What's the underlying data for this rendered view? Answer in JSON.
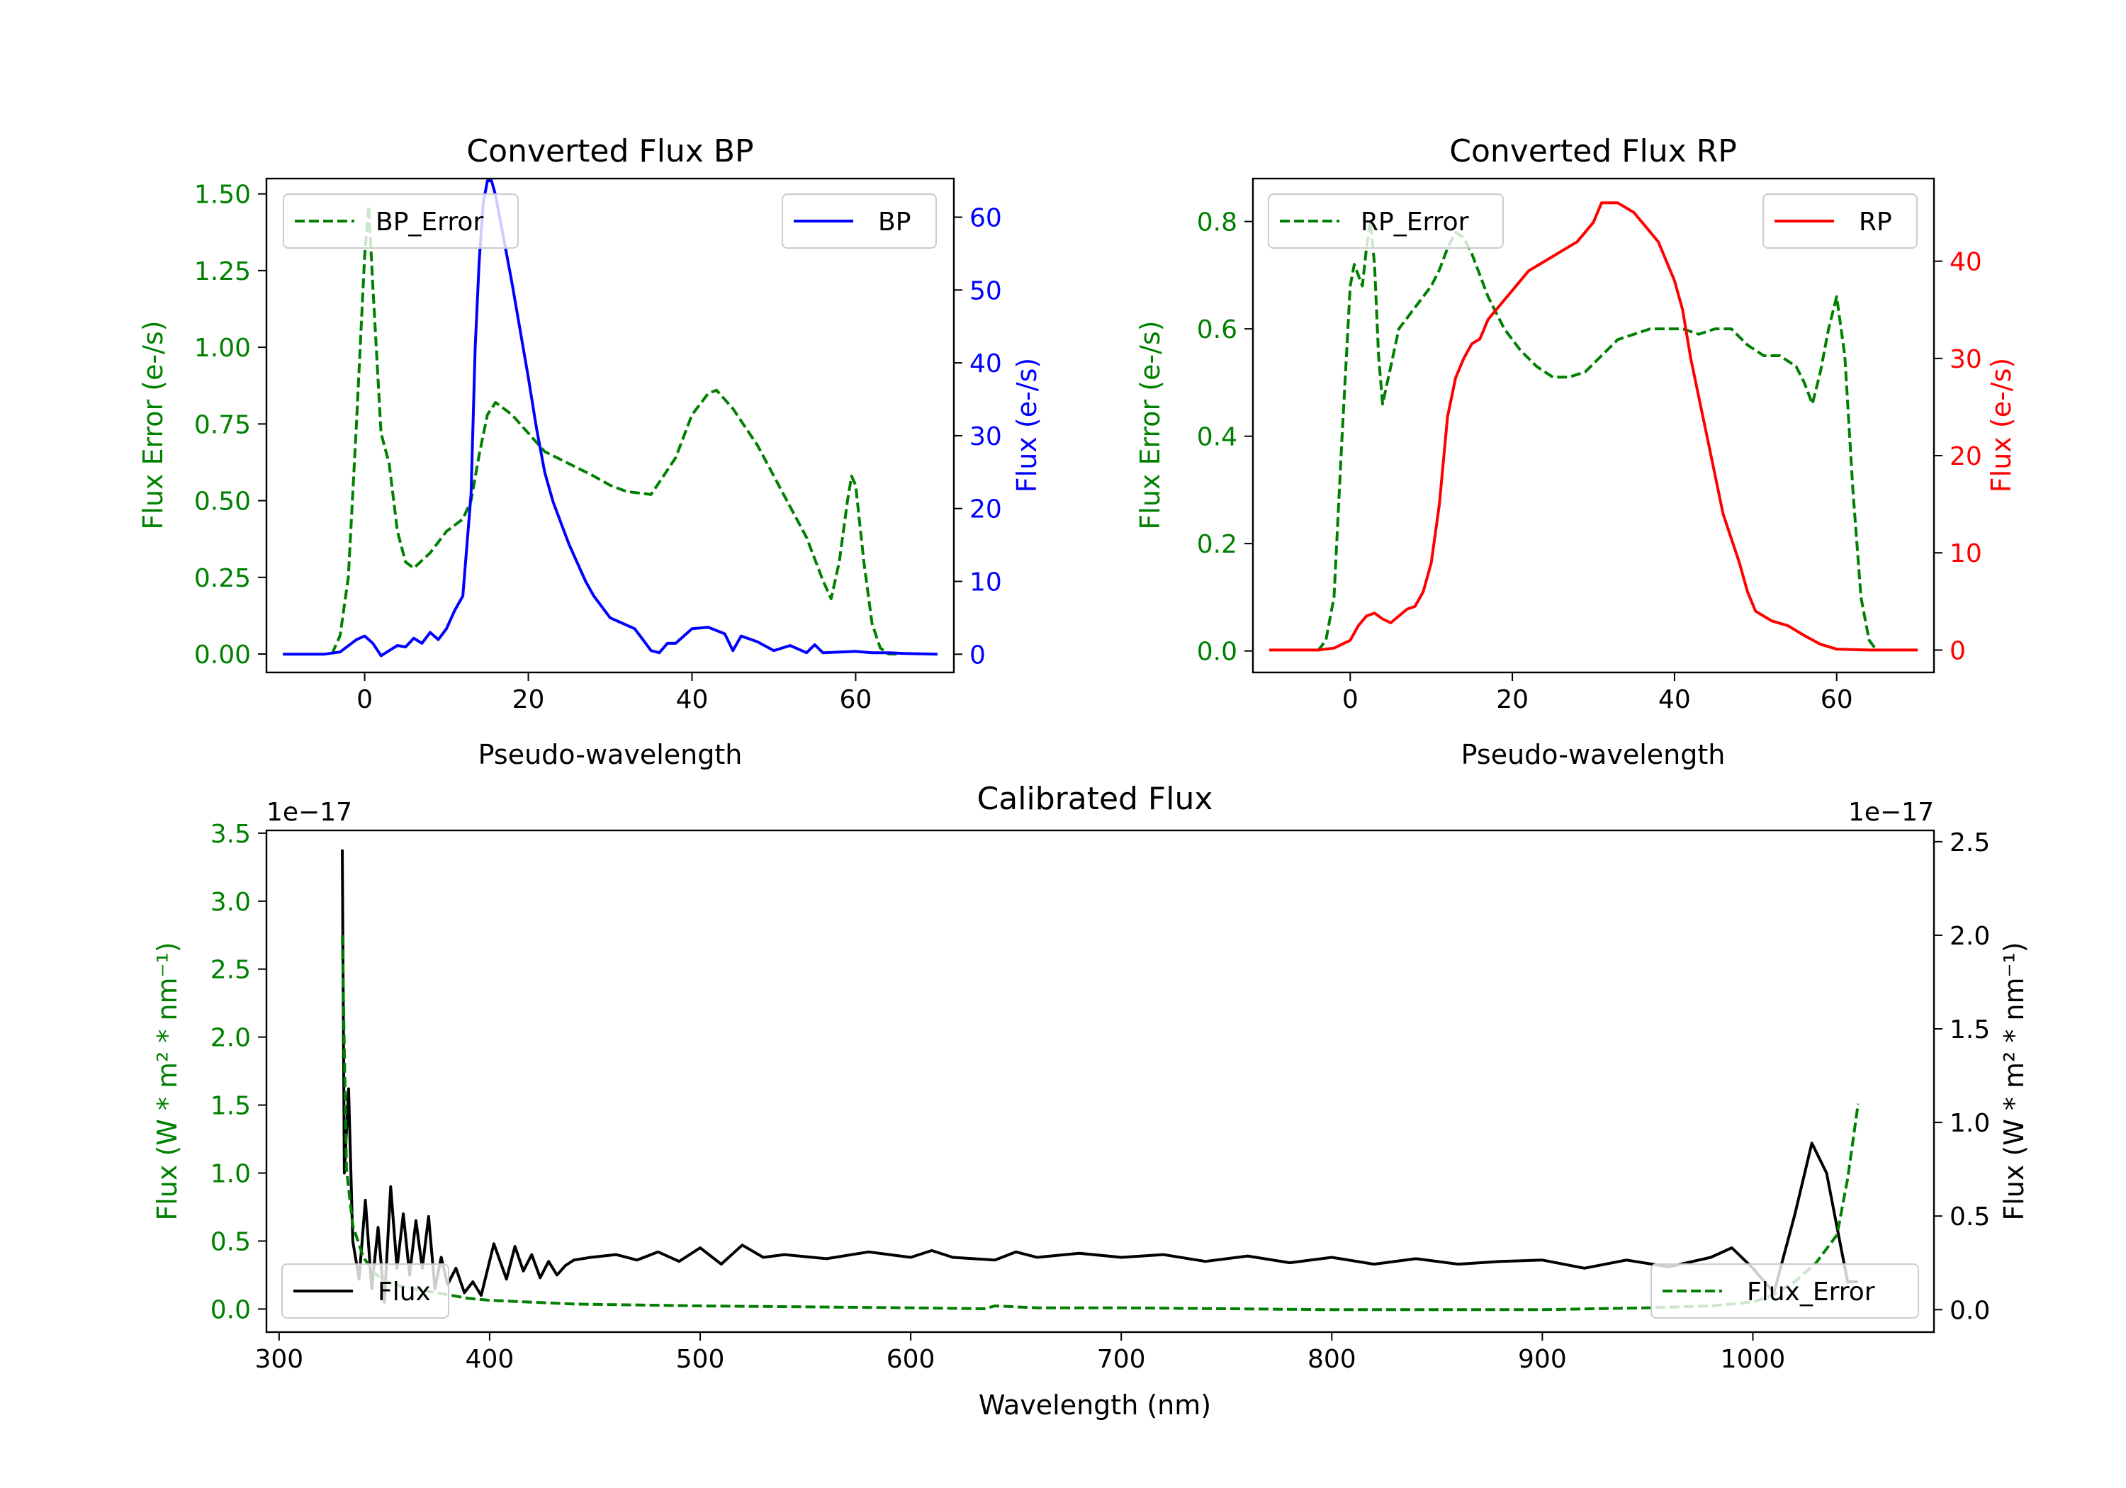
{
  "chart_data": [
    {
      "type": "line",
      "title": "Converted Flux BP",
      "xlabel": "Pseudo-wavelength",
      "xlim": [
        -12,
        72
      ],
      "xticks": [
        "0",
        "20",
        "40",
        "60"
      ],
      "left_axis": {
        "label": "Flux Error (e-/s)",
        "color": "#008000",
        "ylim": [
          -0.06,
          1.55
        ],
        "ticks": [
          "0.00",
          "0.25",
          "0.50",
          "0.75",
          "1.00",
          "1.25",
          "1.50"
        ]
      },
      "right_axis": {
        "label": "Flux (e-/s)",
        "color": "#0000ff",
        "ylim": [
          -2.5,
          65.3
        ],
        "ticks": [
          "0",
          "10",
          "20",
          "30",
          "40",
          "50",
          "60"
        ]
      },
      "series": [
        {
          "name": "BP_Error",
          "axis": "left",
          "style": "dashed",
          "color": "#008000",
          "x": [
            -4,
            -3,
            -2,
            -1,
            0,
            0.5,
            1,
            2,
            3,
            4,
            5,
            6,
            8,
            10,
            12,
            13,
            14,
            15,
            16,
            18,
            20,
            22,
            25,
            28,
            30,
            32,
            35,
            38,
            40,
            42,
            43,
            45,
            48,
            50,
            52,
            54,
            56,
            57,
            58,
            59,
            59.5,
            60,
            61,
            62,
            63,
            64,
            65
          ],
          "y": [
            0.0,
            0.06,
            0.25,
            0.75,
            1.3,
            1.46,
            1.2,
            0.72,
            0.62,
            0.4,
            0.3,
            0.28,
            0.33,
            0.4,
            0.44,
            0.5,
            0.65,
            0.78,
            0.82,
            0.78,
            0.72,
            0.66,
            0.62,
            0.58,
            0.55,
            0.53,
            0.52,
            0.64,
            0.78,
            0.85,
            0.86,
            0.8,
            0.68,
            0.58,
            0.48,
            0.38,
            0.24,
            0.18,
            0.3,
            0.5,
            0.58,
            0.55,
            0.3,
            0.1,
            0.02,
            0.0,
            0.0
          ]
        },
        {
          "name": "BP",
          "axis": "right",
          "style": "solid",
          "color": "#0000ff",
          "x": [
            -10,
            -5,
            -3,
            -1,
            0,
            1,
            2,
            3,
            4,
            5,
            6,
            7,
            8,
            9,
            10,
            11,
            12,
            13,
            13.5,
            14,
            14.5,
            15,
            15.5,
            16,
            17,
            18,
            20,
            21,
            22,
            23,
            24,
            25,
            27,
            28,
            30,
            32,
            33,
            34,
            35,
            36,
            37,
            38,
            40,
            42,
            44,
            45,
            46,
            48,
            50,
            52,
            54,
            55,
            56,
            58,
            60,
            62,
            64,
            66,
            70
          ],
          "y": [
            0,
            0,
            0.3,
            2,
            2.5,
            1.5,
            -0.2,
            0.5,
            1.2,
            1,
            2.2,
            1.5,
            3,
            2,
            3.5,
            6,
            8,
            22,
            42,
            54,
            62,
            65,
            65,
            63,
            57,
            51,
            38,
            31,
            25,
            21,
            18,
            15,
            10,
            8,
            5,
            4,
            3.5,
            2,
            0.5,
            0.2,
            1.5,
            1.5,
            3.5,
            3.7,
            2.8,
            0.5,
            2.5,
            1.7,
            0.5,
            1.2,
            0.2,
            1.3,
            0.2,
            0.3,
            0.4,
            0.2,
            0.2,
            0.1,
            0
          ]
        }
      ],
      "legend": [
        {
          "label": "BP_Error",
          "position": "upper-left"
        },
        {
          "label": "BP",
          "position": "upper-right"
        }
      ]
    },
    {
      "type": "line",
      "title": "Converted Flux RP",
      "xlabel": "Pseudo-wavelength",
      "xlim": [
        -12,
        72
      ],
      "xticks": [
        "0",
        "20",
        "40",
        "60"
      ],
      "left_axis": {
        "label": "Flux Error (e-/s)",
        "color": "#008000",
        "ylim": [
          -0.04,
          0.88
        ],
        "ticks": [
          "0.0",
          "0.2",
          "0.4",
          "0.6",
          "0.8"
        ]
      },
      "right_axis": {
        "label": "Flux (e-/s)",
        "color": "#ff0000",
        "ylim": [
          -2.3,
          48.5
        ],
        "ticks": [
          "0",
          "10",
          "20",
          "30",
          "40"
        ]
      },
      "series": [
        {
          "name": "RP_Error",
          "axis": "left",
          "style": "dashed",
          "color": "#008000",
          "x": [
            -4,
            -3,
            -2,
            -1,
            0,
            0.5,
            1,
            1.5,
            2,
            2.5,
            3,
            3.5,
            4,
            5,
            6,
            7,
            8,
            9,
            10,
            11,
            12,
            13,
            14,
            15,
            17,
            19,
            21,
            23,
            25,
            27,
            29,
            31,
            33,
            35,
            37,
            39,
            41,
            43,
            45,
            47,
            49,
            51,
            53,
            55,
            56,
            57,
            58,
            59,
            60,
            61,
            62,
            63,
            64,
            65
          ],
          "y": [
            0.0,
            0.02,
            0.1,
            0.4,
            0.68,
            0.72,
            0.7,
            0.68,
            0.75,
            0.8,
            0.72,
            0.55,
            0.46,
            0.53,
            0.6,
            0.62,
            0.64,
            0.66,
            0.68,
            0.71,
            0.75,
            0.78,
            0.77,
            0.74,
            0.66,
            0.6,
            0.56,
            0.53,
            0.51,
            0.51,
            0.52,
            0.55,
            0.58,
            0.59,
            0.6,
            0.6,
            0.6,
            0.59,
            0.6,
            0.6,
            0.57,
            0.55,
            0.55,
            0.53,
            0.5,
            0.46,
            0.52,
            0.6,
            0.66,
            0.55,
            0.3,
            0.1,
            0.02,
            0.0
          ]
        },
        {
          "name": "RP",
          "axis": "right",
          "style": "solid",
          "color": "#ff0000",
          "x": [
            -10,
            -4,
            -2,
            0,
            1,
            2,
            3,
            4,
            5,
            6,
            7,
            8,
            9,
            10,
            11,
            12,
            13,
            14,
            15,
            16,
            17,
            18,
            20,
            22,
            24,
            26,
            28,
            30,
            31,
            33,
            35,
            36,
            38,
            40,
            41,
            42,
            44,
            46,
            48,
            49,
            50,
            52,
            54,
            56,
            58,
            60,
            64,
            70
          ],
          "y": [
            0,
            0,
            0.2,
            1,
            2.5,
            3.5,
            3.8,
            3.2,
            2.8,
            3.5,
            4.2,
            4.5,
            6,
            9,
            15,
            24,
            28,
            30,
            31.5,
            32,
            34,
            35,
            37,
            39,
            40,
            41,
            42,
            44,
            46,
            46,
            45,
            44,
            42,
            38,
            35,
            30,
            22,
            14,
            9,
            6,
            4,
            3,
            2.5,
            1.5,
            0.6,
            0.1,
            0,
            0
          ]
        }
      ],
      "legend": [
        {
          "label": "RP_Error",
          "position": "upper-left"
        },
        {
          "label": "RP",
          "position": "upper-right"
        }
      ]
    },
    {
      "type": "line",
      "title": "Calibrated Flux",
      "xlabel": "Wavelength (nm)",
      "xlim": [
        294,
        1086
      ],
      "xticks": [
        "300",
        "400",
        "500",
        "600",
        "700",
        "800",
        "900",
        "1000"
      ],
      "left_axis": {
        "label": "Flux (W * m² * nm⁻¹)",
        "color": "#008000",
        "ylim": [
          -0.17,
          3.52
        ],
        "ticks": [
          "0.0",
          "0.5",
          "1.0",
          "1.5",
          "2.0",
          "2.5",
          "3.0",
          "3.5"
        ],
        "offset_text": "1e−17"
      },
      "right_axis": {
        "label": "Flux (W * m² * nm⁻¹)",
        "color": "#000000",
        "ylim": [
          -0.12,
          2.56
        ],
        "ticks": [
          "0.0",
          "0.5",
          "1.0",
          "1.5",
          "2.0",
          "2.5"
        ],
        "offset_text": "1e−17"
      },
      "series": [
        {
          "name": "Flux",
          "axis": "left",
          "style": "solid",
          "color": "#000000",
          "x": [
            330,
            331,
            333,
            335,
            338,
            341,
            344,
            347,
            350,
            353,
            356,
            359,
            362,
            365,
            368,
            371,
            374,
            377,
            380,
            384,
            388,
            392,
            396,
            402,
            408,
            412,
            416,
            420,
            424,
            428,
            432,
            436,
            440,
            448,
            460,
            470,
            480,
            490,
            500,
            510,
            520,
            530,
            540,
            560,
            580,
            600,
            610,
            620,
            640,
            650,
            660,
            680,
            700,
            720,
            740,
            760,
            780,
            800,
            820,
            840,
            860,
            880,
            900,
            920,
            940,
            960,
            980,
            990,
            1000,
            1010,
            1020,
            1028,
            1035,
            1040,
            1045,
            1050
          ],
          "y": [
            3.38,
            1.0,
            1.62,
            0.5,
            0.22,
            0.8,
            0.15,
            0.6,
            0.05,
            0.9,
            0.3,
            0.7,
            0.25,
            0.65,
            0.3,
            0.68,
            0.15,
            0.38,
            0.18,
            0.3,
            0.12,
            0.2,
            0.1,
            0.48,
            0.22,
            0.46,
            0.28,
            0.4,
            0.23,
            0.35,
            0.25,
            0.32,
            0.36,
            0.38,
            0.4,
            0.36,
            0.42,
            0.35,
            0.45,
            0.33,
            0.47,
            0.38,
            0.4,
            0.37,
            0.42,
            0.38,
            0.43,
            0.38,
            0.36,
            0.42,
            0.38,
            0.41,
            0.38,
            0.4,
            0.35,
            0.39,
            0.34,
            0.38,
            0.33,
            0.37,
            0.33,
            0.35,
            0.36,
            0.3,
            0.36,
            0.31,
            0.38,
            0.45,
            0.3,
            0.12,
            0.7,
            1.22,
            1.0,
            0.6,
            0.2,
            0.2
          ]
        },
        {
          "name": "Flux_Error",
          "axis": "right",
          "style": "dashed",
          "color": "#008000",
          "x": [
            330,
            332,
            335,
            340,
            345,
            350,
            360,
            370,
            380,
            390,
            400,
            420,
            440,
            500,
            600,
            635,
            640,
            660,
            700,
            800,
            900,
            950,
            980,
            1000,
            1010,
            1020,
            1030,
            1040,
            1045,
            1050
          ],
          "y": [
            2.0,
            0.75,
            0.45,
            0.28,
            0.2,
            0.15,
            0.12,
            0.1,
            0.08,
            0.06,
            0.05,
            0.04,
            0.03,
            0.02,
            0.01,
            0.005,
            0.02,
            0.01,
            0.01,
            0.0,
            0.0,
            0.01,
            0.02,
            0.04,
            0.08,
            0.15,
            0.25,
            0.4,
            0.7,
            1.1
          ]
        }
      ],
      "legend": [
        {
          "label": "Flux",
          "position": "lower-left"
        },
        {
          "label": "Flux_Error",
          "position": "lower-right"
        }
      ]
    }
  ]
}
